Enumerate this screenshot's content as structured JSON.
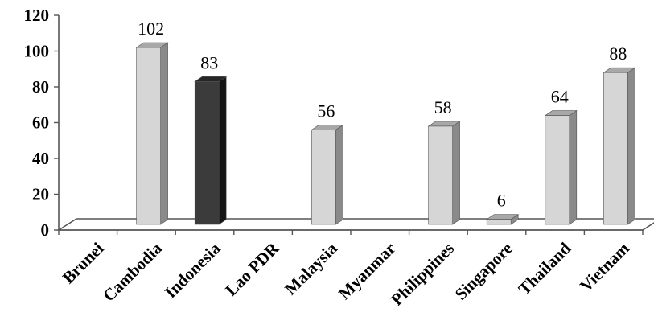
{
  "chart_data": {
    "type": "bar",
    "categories": [
      "Brunei",
      "Cambodia",
      "Indonesia",
      "Lao PDR",
      "Malaysia",
      "Myanmar",
      "Philippines",
      "Singapore",
      "Thailand",
      "Vietnam"
    ],
    "values": [
      null,
      102,
      83,
      null,
      56,
      null,
      58,
      6,
      64,
      88
    ],
    "data_labels": [
      "",
      "102",
      "83",
      "",
      "56",
      "",
      "58",
      "6",
      "64",
      "88"
    ],
    "highlight_category": "Indonesia",
    "ylim": [
      0,
      120
    ],
    "yticks": [
      "0",
      "20",
      "40",
      "60",
      "80",
      "100",
      "120"
    ],
    "title": "",
    "xlabel": "",
    "ylabel": "",
    "grid": false,
    "legend": "none",
    "style": "3d-column",
    "colors": {
      "bar_front": "#d6d6d6",
      "bar_side": "#8a8a8a",
      "bar_top": "#a8a8a8",
      "highlight_front": "#3b3b3b",
      "highlight_side": "#141414",
      "highlight_top": "#262626",
      "axis": "#555555"
    }
  }
}
